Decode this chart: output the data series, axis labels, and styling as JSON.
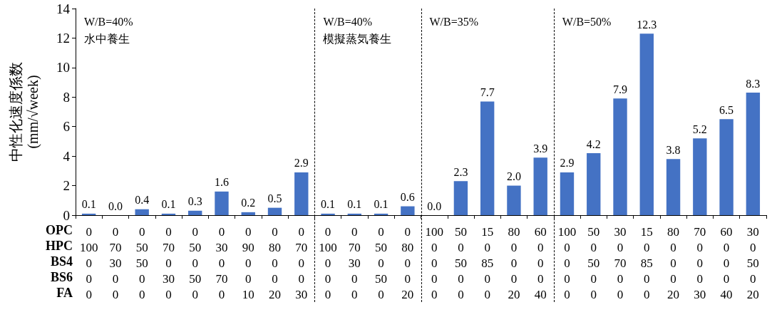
{
  "chart_data": {
    "type": "bar",
    "ylabel": "中性化速度係数\n(mm/√week)",
    "categories": [
      "0\n100\n0\n0\n0",
      "0\n70\n30\n0\n0",
      "0\n50\n50\n0\n0",
      "0\n70\n0\n30\n0",
      "0\n50\n0\n50\n0",
      "0\n30\n0\n70\n0",
      "0\n90\n0\n0\n10",
      "0\n80\n0\n0\n20",
      "0\n70\n0\n0\n30",
      "0\n100\n0\n0\n0",
      "0\n70\n30\n0\n0",
      "0\n50\n0\n50\n0",
      "0\n80\n0\n0\n20",
      "100\n0\n0\n0\n0",
      "50\n0\n50\n0\n0",
      "15\n0\n85\n0\n0",
      "80\n0\n0\n0\n20",
      "60\n0\n0\n0\n40",
      "100\n0\n0\n0\n0",
      "50\n0\n50\n0\n0",
      "30\n0\n70\n0\n0",
      "15\n0\n85\n0\n0",
      "80\n0\n0\n0\n20",
      "70\n0\n0\n0\n30",
      "60\n0\n0\n0\n40",
      "30\n0\n50\n0\n20"
    ],
    "values": [
      0.1,
      0.0,
      0.4,
      0.1,
      0.3,
      1.6,
      0.2,
      0.5,
      2.9,
      0.1,
      0.1,
      0.1,
      0.6,
      0.0,
      2.3,
      7.7,
      2.0,
      3.9,
      2.9,
      4.2,
      7.9,
      12.3,
      3.8,
      5.2,
      6.5,
      8.3
    ],
    "value_labels": [
      "0.1",
      "0.0",
      "0.4",
      "0.1",
      "0.3",
      "1.6",
      "0.2",
      "0.5",
      "2.9",
      "0.1",
      "0.1",
      "0.1",
      "0.6",
      "0.0",
      "2.3",
      "7.7",
      "2.0",
      "3.9",
      "2.9",
      "4.2",
      "7.9",
      "12.3",
      "3.8",
      "5.2",
      "6.5",
      "8.3"
    ],
    "color": "#4472c4",
    "ylim": [
      0,
      14
    ],
    "yticks": [
      0,
      2,
      4,
      6,
      8,
      10,
      12,
      14
    ],
    "grid": false,
    "annotations": [
      "W/B=40%\n水中養生",
      "W/B=40%\n模擬蒸気養生",
      "W/B=35%",
      "W/B=50%",
      "OPC",
      "HPC",
      "BS4",
      "BS6",
      "FA"
    ]
  }
}
